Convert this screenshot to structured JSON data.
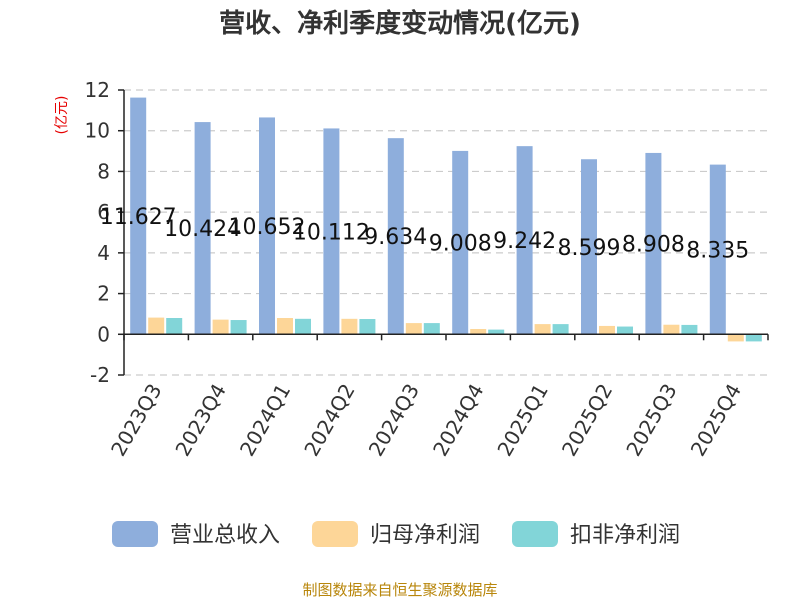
{
  "chart_data": {
    "type": "bar",
    "title": "营收、净利季度变动情况(亿元)",
    "ylabel": "(亿元)",
    "ylim": [
      -2,
      12
    ],
    "yticks": [
      -2,
      0,
      2,
      4,
      6,
      8,
      10,
      12
    ],
    "grid": true,
    "legend_position": "bottom",
    "categories": [
      "2023Q3",
      "2023Q4",
      "2024Q1",
      "2024Q2",
      "2024Q3",
      "2024Q4",
      "2025Q1",
      "2025Q2",
      "2025Q3",
      "2025Q4"
    ],
    "series": [
      {
        "name": "营业总收入",
        "color": "#8eaedc",
        "values": [
          11.627,
          10.424,
          10.652,
          10.112,
          9.634,
          9.008,
          9.242,
          8.599,
          8.908,
          8.335
        ],
        "labels": [
          "11.627",
          "10.424",
          "10.652",
          "10.112",
          "9.634",
          "9.008",
          "9.242",
          "8.599",
          "8.908",
          "8.335"
        ]
      },
      {
        "name": "归母净利润",
        "color": "#fdd698",
        "values": [
          0.82,
          0.72,
          0.8,
          0.76,
          0.55,
          0.26,
          0.5,
          0.41,
          0.47,
          -0.35
        ]
      },
      {
        "name": "扣非净利润",
        "color": "#82d5d8",
        "values": [
          0.8,
          0.7,
          0.76,
          0.75,
          0.55,
          0.23,
          0.5,
          0.38,
          0.46,
          -0.35
        ]
      }
    ]
  },
  "source": "制图数据来自恒生聚源数据库"
}
